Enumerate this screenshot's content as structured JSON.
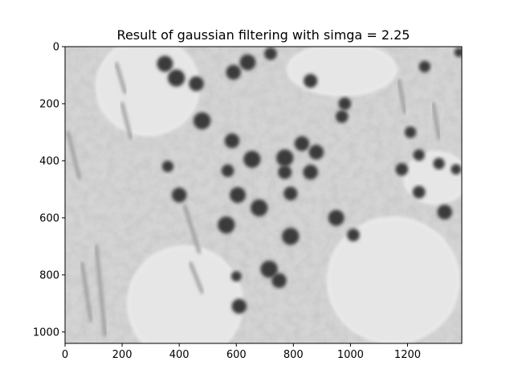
{
  "chart_data": {
    "type": "heatmap",
    "title": "Result of gaussian filtering with simgа = 2.25",
    "xlabel": "",
    "ylabel": "",
    "xlim": [
      0,
      1390
    ],
    "ylim": [
      1040,
      0
    ],
    "x_ticks": [
      0,
      200,
      400,
      600,
      800,
      1000,
      1200
    ],
    "y_ticks": [
      0,
      200,
      400,
      600,
      800,
      1000
    ],
    "x_tick_labels": [
      "0",
      "200",
      "400",
      "600",
      "800",
      "1000",
      "1200"
    ],
    "y_tick_labels": [
      "0",
      "200",
      "400",
      "600",
      "800",
      "1000"
    ],
    "colormap": "gray",
    "grid": false,
    "image_content": "grayscale microscopy image of tissue with dark round nuclei",
    "colors": {
      "background": "#d9d9d9",
      "nucleus": "#3a3a3a",
      "fiber": "#9a9a9a",
      "lumen": "#e6e6e6"
    },
    "nuclei": [
      {
        "x": 350,
        "y": 60,
        "r": 28
      },
      {
        "x": 390,
        "y": 110,
        "r": 30
      },
      {
        "x": 460,
        "y": 130,
        "r": 26
      },
      {
        "x": 590,
        "y": 90,
        "r": 26
      },
      {
        "x": 640,
        "y": 55,
        "r": 28
      },
      {
        "x": 720,
        "y": 25,
        "r": 22
      },
      {
        "x": 860,
        "y": 120,
        "r": 24
      },
      {
        "x": 480,
        "y": 260,
        "r": 30
      },
      {
        "x": 585,
        "y": 330,
        "r": 26
      },
      {
        "x": 655,
        "y": 395,
        "r": 30
      },
      {
        "x": 770,
        "y": 390,
        "r": 30
      },
      {
        "x": 830,
        "y": 340,
        "r": 26
      },
      {
        "x": 880,
        "y": 370,
        "r": 26
      },
      {
        "x": 770,
        "y": 440,
        "r": 24
      },
      {
        "x": 860,
        "y": 440,
        "r": 26
      },
      {
        "x": 570,
        "y": 435,
        "r": 22
      },
      {
        "x": 605,
        "y": 520,
        "r": 28
      },
      {
        "x": 680,
        "y": 565,
        "r": 30
      },
      {
        "x": 790,
        "y": 515,
        "r": 24
      },
      {
        "x": 565,
        "y": 625,
        "r": 30
      },
      {
        "x": 790,
        "y": 665,
        "r": 30
      },
      {
        "x": 950,
        "y": 600,
        "r": 28
      },
      {
        "x": 1010,
        "y": 660,
        "r": 22
      },
      {
        "x": 715,
        "y": 780,
        "r": 30
      },
      {
        "x": 750,
        "y": 820,
        "r": 26
      },
      {
        "x": 610,
        "y": 910,
        "r": 26
      },
      {
        "x": 600,
        "y": 805,
        "r": 18
      },
      {
        "x": 360,
        "y": 420,
        "r": 20
      },
      {
        "x": 400,
        "y": 520,
        "r": 26
      },
      {
        "x": 980,
        "y": 200,
        "r": 22
      },
      {
        "x": 970,
        "y": 245,
        "r": 22
      },
      {
        "x": 1210,
        "y": 300,
        "r": 20
      },
      {
        "x": 1240,
        "y": 380,
        "r": 20
      },
      {
        "x": 1180,
        "y": 430,
        "r": 22
      },
      {
        "x": 1240,
        "y": 510,
        "r": 22
      },
      {
        "x": 1310,
        "y": 410,
        "r": 20
      },
      {
        "x": 1370,
        "y": 430,
        "r": 18
      },
      {
        "x": 1330,
        "y": 580,
        "r": 26
      },
      {
        "x": 1260,
        "y": 70,
        "r": 20
      },
      {
        "x": 1380,
        "y": 20,
        "r": 16
      }
    ],
    "fibers": [
      {
        "x1": 10,
        "y1": 300,
        "x2": 50,
        "y2": 460
      },
      {
        "x1": 60,
        "y1": 760,
        "x2": 90,
        "y2": 960
      },
      {
        "x1": 110,
        "y1": 700,
        "x2": 140,
        "y2": 1010
      },
      {
        "x1": 180,
        "y1": 60,
        "x2": 210,
        "y2": 160
      },
      {
        "x1": 200,
        "y1": 200,
        "x2": 230,
        "y2": 320
      },
      {
        "x1": 420,
        "y1": 560,
        "x2": 470,
        "y2": 720
      },
      {
        "x1": 440,
        "y1": 760,
        "x2": 480,
        "y2": 860
      },
      {
        "x1": 1170,
        "y1": 120,
        "x2": 1190,
        "y2": 230
      },
      {
        "x1": 1290,
        "y1": 200,
        "x2": 1310,
        "y2": 320
      }
    ],
    "lumens": [
      {
        "cx": 290,
        "cy": 140,
        "rx": 180,
        "ry": 170
      },
      {
        "cx": 970,
        "cy": 80,
        "rx": 190,
        "ry": 90
      },
      {
        "cx": 1150,
        "cy": 820,
        "rx": 230,
        "ry": 220
      },
      {
        "cx": 420,
        "cy": 900,
        "rx": 200,
        "ry": 200
      },
      {
        "cx": 1300,
        "cy": 460,
        "rx": 110,
        "ry": 90
      }
    ]
  }
}
